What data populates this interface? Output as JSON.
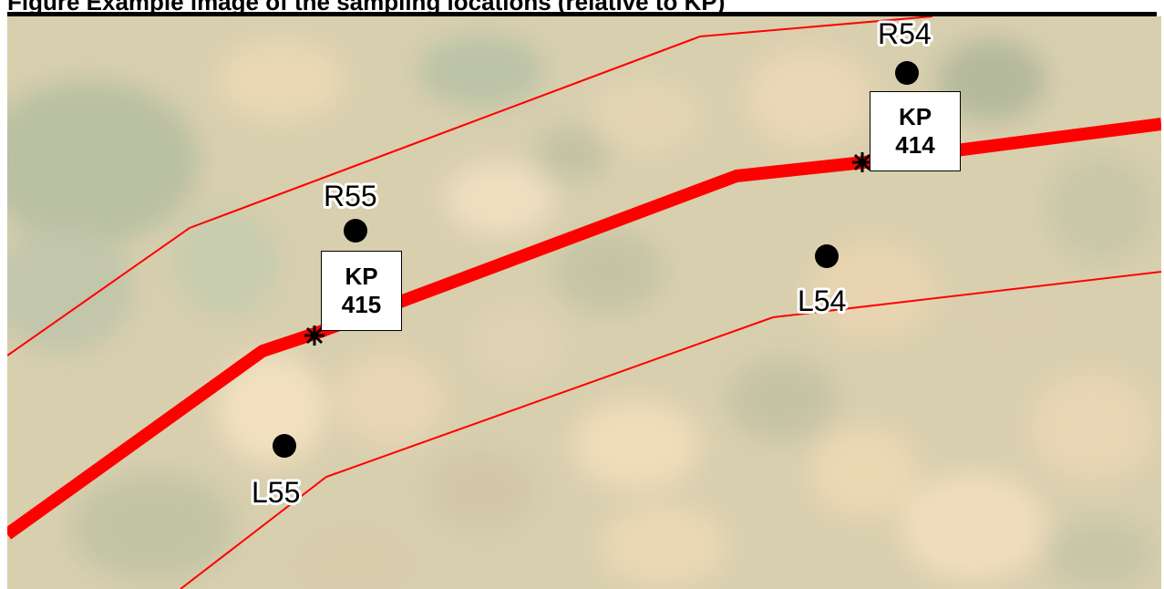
{
  "figure": {
    "caption": "Figure   Example image of the sampling locations (relative to KP)"
  },
  "map": {
    "background": "aerial-imagery",
    "centerline_color": "#ff0000",
    "boundary_color": "#ff0000",
    "sampling_points": [
      {
        "id": "R54",
        "label": "R54"
      },
      {
        "id": "L54",
        "label": "L54"
      },
      {
        "id": "R55",
        "label": "R55"
      },
      {
        "id": "L55",
        "label": "L55"
      }
    ],
    "kilometer_posts": [
      {
        "label_top": "KP",
        "label_bottom": "414",
        "marker_icon": "asterisk-marker-icon"
      },
      {
        "label_top": "KP",
        "label_bottom": "415",
        "marker_icon": "asterisk-marker-icon"
      }
    ]
  }
}
